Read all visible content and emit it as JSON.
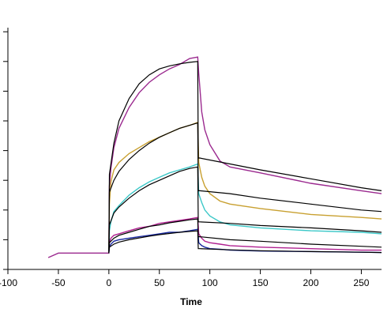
{
  "chart_data": {
    "type": "line",
    "xlabel": "Time",
    "ylabel": "",
    "xlim": [
      -100,
      270
    ],
    "ylim": [
      -0.5,
      8.0
    ],
    "x_ticks": [
      -100,
      -50,
      0,
      50,
      100,
      150,
      200,
      250
    ],
    "x_tick_labels": [
      "-100",
      "-50",
      "0",
      "50",
      "100",
      "150",
      "200",
      "250"
    ],
    "y_ticks": [
      0,
      1,
      2,
      3,
      4,
      5,
      6,
      7,
      8
    ],
    "colors": {
      "axis": "#000000",
      "fit": "#000000"
    },
    "series": [
      {
        "color": "#9b2a8f",
        "x": [
          -60,
          -50,
          -30,
          0,
          0.5,
          2,
          5,
          10,
          20,
          30,
          40,
          50,
          60,
          70,
          80,
          88,
          89,
          92,
          95,
          100,
          110,
          120,
          150,
          200,
          250,
          270
        ],
        "y": [
          0.4,
          0.55,
          0.55,
          0.55,
          2.8,
          3.4,
          4.1,
          4.75,
          5.45,
          5.95,
          6.3,
          6.55,
          6.75,
          6.9,
          7.1,
          7.15,
          6.6,
          5.3,
          4.7,
          4.2,
          3.65,
          3.45,
          3.25,
          2.9,
          2.65,
          2.55
        ]
      },
      {
        "color": "#c8a030",
        "x": [
          0,
          0.5,
          2,
          5,
          10,
          20,
          30,
          40,
          50,
          60,
          70,
          80,
          88,
          89,
          92,
          95,
          100,
          110,
          120,
          150,
          200,
          250,
          270
        ],
        "y": [
          0.55,
          2.2,
          2.95,
          3.35,
          3.6,
          3.9,
          4.1,
          4.3,
          4.45,
          4.6,
          4.75,
          4.85,
          4.95,
          3.6,
          3.1,
          2.8,
          2.55,
          2.3,
          2.2,
          2.05,
          1.85,
          1.75,
          1.7
        ]
      },
      {
        "color": "#3cc8c8",
        "x": [
          0,
          0.5,
          2,
          5,
          10,
          20,
          30,
          40,
          50,
          60,
          70,
          80,
          88,
          89,
          92,
          95,
          100,
          110,
          120,
          150,
          200,
          250,
          270
        ],
        "y": [
          0.55,
          1.3,
          1.6,
          1.95,
          2.15,
          2.5,
          2.75,
          2.95,
          3.1,
          3.25,
          3.35,
          3.45,
          3.55,
          2.55,
          2.25,
          2.0,
          1.8,
          1.6,
          1.5,
          1.4,
          1.3,
          1.25,
          1.2
        ]
      },
      {
        "color": "#b02090",
        "x": [
          0,
          0.5,
          2,
          5,
          10,
          20,
          30,
          40,
          50,
          60,
          70,
          80,
          88,
          89,
          92,
          95,
          100,
          110,
          120,
          150,
          200,
          250,
          270
        ],
        "y": [
          0.55,
          0.9,
          1.05,
          1.15,
          1.2,
          1.3,
          1.4,
          1.45,
          1.55,
          1.6,
          1.65,
          1.7,
          1.75,
          1.2,
          1.05,
          0.95,
          0.9,
          0.85,
          0.8,
          0.75,
          0.7,
          0.65,
          0.65
        ]
      },
      {
        "color": "#1a2aa0",
        "x": [
          0,
          0.5,
          2,
          5,
          10,
          20,
          30,
          40,
          50,
          60,
          70,
          80,
          88,
          89,
          92,
          95,
          100,
          110,
          120,
          150,
          200,
          250,
          270
        ],
        "y": [
          0.55,
          0.75,
          0.85,
          0.95,
          1.0,
          1.05,
          1.1,
          1.15,
          1.2,
          1.25,
          1.25,
          1.3,
          1.35,
          0.9,
          0.8,
          0.75,
          0.7,
          0.68,
          0.65,
          0.62,
          0.6,
          0.58,
          0.57
        ]
      }
    ],
    "fits": [
      {
        "x": [
          0,
          0.5,
          5,
          10,
          20,
          30,
          40,
          50,
          60,
          70,
          80,
          88,
          88.5,
          90,
          120,
          150,
          200,
          250,
          270
        ],
        "y": [
          0.55,
          3.2,
          4.25,
          5.0,
          5.75,
          6.25,
          6.55,
          6.75,
          6.85,
          6.92,
          6.97,
          7.0,
          3.75,
          3.75,
          3.55,
          3.35,
          3.05,
          2.75,
          2.65
        ]
      },
      {
        "x": [
          0,
          0.5,
          5,
          10,
          20,
          30,
          40,
          50,
          60,
          70,
          80,
          88,
          88.5,
          90,
          120,
          150,
          200,
          250,
          270
        ],
        "y": [
          0.55,
          2.6,
          3.0,
          3.3,
          3.7,
          4.0,
          4.25,
          4.45,
          4.6,
          4.75,
          4.85,
          4.93,
          2.65,
          2.65,
          2.55,
          2.4,
          2.2,
          2.0,
          1.95
        ]
      },
      {
        "x": [
          0,
          0.5,
          5,
          10,
          20,
          30,
          40,
          50,
          60,
          70,
          80,
          88,
          88.5,
          90,
          120,
          150,
          200,
          250,
          270
        ],
        "y": [
          0.55,
          1.5,
          1.9,
          2.1,
          2.4,
          2.65,
          2.85,
          3.0,
          3.15,
          3.3,
          3.4,
          3.45,
          1.6,
          1.6,
          1.55,
          1.48,
          1.4,
          1.3,
          1.25
        ]
      },
      {
        "x": [
          0,
          0.5,
          5,
          10,
          20,
          30,
          40,
          50,
          60,
          70,
          80,
          88,
          88.5,
          90,
          120,
          150,
          200,
          250,
          270
        ],
        "y": [
          0.55,
          0.9,
          1.05,
          1.15,
          1.25,
          1.35,
          1.45,
          1.5,
          1.57,
          1.62,
          1.67,
          1.7,
          1.1,
          1.1,
          1.0,
          0.95,
          0.85,
          0.78,
          0.75
        ]
      },
      {
        "x": [
          0,
          0.5,
          5,
          10,
          20,
          30,
          40,
          50,
          60,
          70,
          80,
          88,
          88.5,
          90,
          120,
          150,
          200,
          250,
          270
        ],
        "y": [
          0.55,
          0.75,
          0.85,
          0.92,
          1.0,
          1.06,
          1.12,
          1.17,
          1.21,
          1.25,
          1.28,
          1.3,
          0.7,
          0.7,
          0.66,
          0.63,
          0.6,
          0.58,
          0.57
        ]
      }
    ]
  }
}
